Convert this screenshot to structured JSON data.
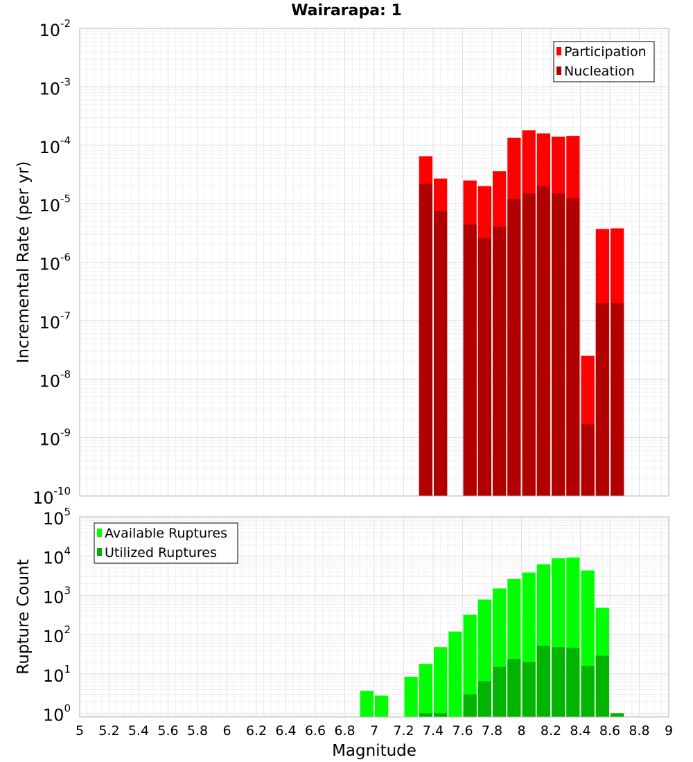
{
  "chart_data": {
    "type": "bar",
    "title": "Wairarapa: 1",
    "xlabel": "Magnitude",
    "x_ticks": [
      "5",
      "5.2",
      "5.4",
      "5.6",
      "5.8",
      "6",
      "6.2",
      "6.4",
      "6.6",
      "6.8",
      "7",
      "7.2",
      "7.4",
      "7.6",
      "7.8",
      "8",
      "8.2",
      "8.4",
      "8.6",
      "8.8",
      "9"
    ],
    "xlim": [
      5,
      9
    ],
    "bin_width": 0.1,
    "panels": [
      {
        "name": "rate",
        "ylabel": "Incremental Rate (per yr)",
        "yscale": "log",
        "ylim": [
          1e-10,
          0.01
        ],
        "y_ticks": [
          {
            "base": "10",
            "exp": "-10"
          },
          {
            "base": "10",
            "exp": "-9"
          },
          {
            "base": "10",
            "exp": "-8"
          },
          {
            "base": "10",
            "exp": "-7"
          },
          {
            "base": "10",
            "exp": "-6"
          },
          {
            "base": "10",
            "exp": "-5"
          },
          {
            "base": "10",
            "exp": "-4"
          },
          {
            "base": "10",
            "exp": "-3"
          },
          {
            "base": "10",
            "exp": "-2"
          }
        ],
        "legend_position": "top-right",
        "series": [
          {
            "name": "Participation",
            "color": "#ff0000",
            "x": [
              7.35,
              7.45,
              7.65,
              7.75,
              7.85,
              7.95,
              8.05,
              8.15,
              8.25,
              8.35,
              8.45,
              8.55,
              8.65
            ],
            "values": [
              6.5e-05,
              2.7e-05,
              2.5e-05,
              2e-05,
              3.6e-05,
              0.000135,
              0.00018,
              0.00016,
              0.00014,
              0.000145,
              2.5e-08,
              3.7e-06,
              3.8e-06
            ]
          },
          {
            "name": "Nucleation",
            "color": "#b00000",
            "x": [
              7.35,
              7.45,
              7.65,
              7.75,
              7.85,
              7.95,
              8.05,
              8.15,
              8.25,
              8.35,
              8.45,
              8.55,
              8.65
            ],
            "values": [
              2.2e-05,
              7.5e-06,
              4.4e-06,
              2.6e-06,
              4e-06,
              1.2e-05,
              1.5e-05,
              2e-05,
              1.5e-05,
              1.25e-05,
              1.7e-09,
              2e-07,
              2e-07
            ]
          }
        ]
      },
      {
        "name": "count",
        "ylabel": "Rupture Count",
        "yscale": "log",
        "ylim": [
          0.8,
          100000.0
        ],
        "y_ticks": [
          {
            "base": "10",
            "exp": "0"
          },
          {
            "base": "10",
            "exp": "1"
          },
          {
            "base": "10",
            "exp": "2"
          },
          {
            "base": "10",
            "exp": "3"
          },
          {
            "base": "10",
            "exp": "4"
          },
          {
            "base": "10",
            "exp": "5"
          }
        ],
        "legend_position": "top-left",
        "series": [
          {
            "name": "Available Ruptures",
            "color": "#00ff00",
            "x": [
              6.95,
              7.05,
              7.25,
              7.35,
              7.45,
              7.55,
              7.65,
              7.75,
              7.85,
              7.95,
              8.05,
              8.15,
              8.25,
              8.35,
              8.45,
              8.55
            ],
            "values": [
              3.7,
              2.8,
              8.5,
              18,
              48,
              120,
              320,
              780,
              1500,
              2600,
              3800,
              6200,
              8800,
              9200,
              4300,
              480
            ]
          },
          {
            "name": "Utilized Ruptures",
            "color": "#00b400",
            "x": [
              7.35,
              7.45,
              7.65,
              7.75,
              7.85,
              7.95,
              8.05,
              8.15,
              8.25,
              8.35,
              8.45,
              8.55,
              8.65
            ],
            "values": [
              1,
              1,
              3,
              6.5,
              15,
              24,
              20,
              52,
              48,
              46,
              16,
              29,
              1
            ]
          }
        ]
      }
    ]
  }
}
